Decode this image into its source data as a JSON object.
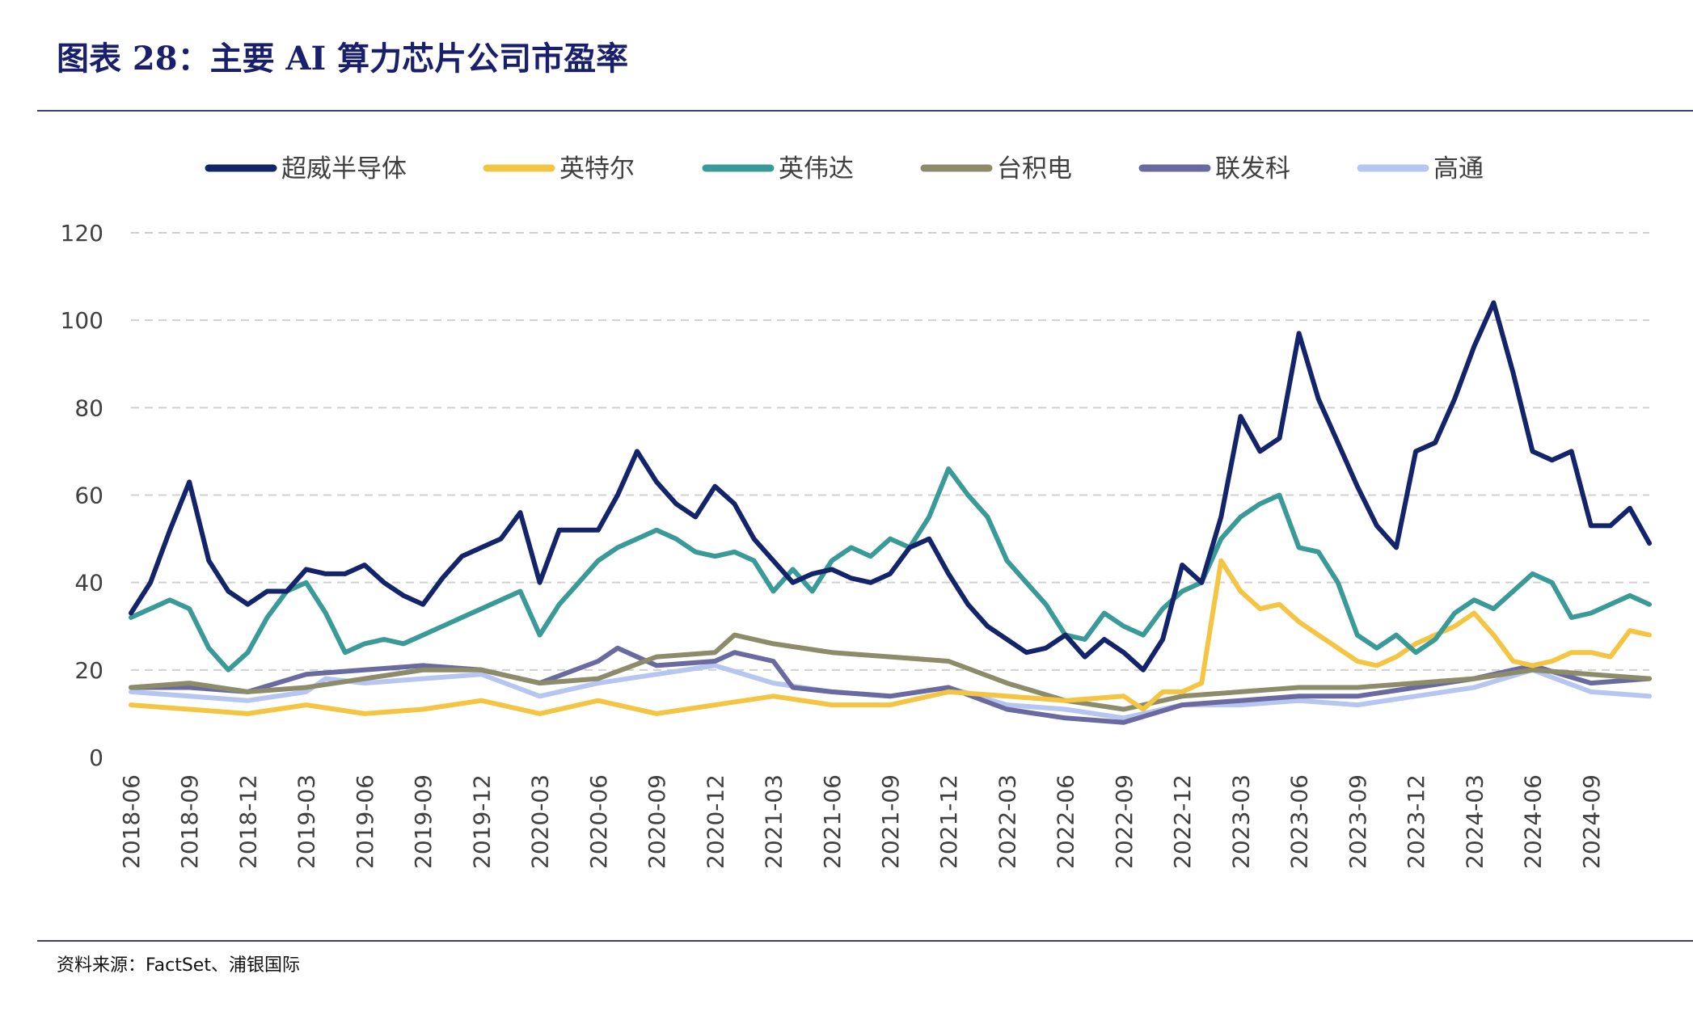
{
  "figure": {
    "title": "图表 28：主要 AI 算力芯片公司市盈率",
    "source": "资料来源：FactSet、浦银国际"
  },
  "chart_data": {
    "type": "line",
    "title": "图表 28：主要 AI 算力芯片公司市盈率",
    "xlabel": "",
    "ylabel": "",
    "ylim": [
      0,
      120
    ],
    "yticks": [
      0,
      20,
      40,
      60,
      80,
      100,
      120
    ],
    "xlim": [
      "2018-06",
      "2024-12"
    ],
    "xticks": [
      "2018-06",
      "2018-09",
      "2018-12",
      "2019-03",
      "2019-06",
      "2019-09",
      "2019-12",
      "2020-03",
      "2020-06",
      "2020-09",
      "2020-12",
      "2021-03",
      "2021-06",
      "2021-09",
      "2021-12",
      "2022-03",
      "2022-06",
      "2022-09",
      "2022-12",
      "2023-03",
      "2023-06",
      "2023-09",
      "2023-12",
      "2024-03",
      "2024-06",
      "2024-09"
    ],
    "grid": "horizontal dashed",
    "legend_position": "top",
    "series": [
      {
        "name": "超威半导体",
        "color": "#13246b",
        "x": [
          "2018-06",
          "2018-07",
          "2018-08",
          "2018-09",
          "2018-10",
          "2018-11",
          "2018-12",
          "2019-01",
          "2019-02",
          "2019-03",
          "2019-04",
          "2019-05",
          "2019-06",
          "2019-07",
          "2019-08",
          "2019-09",
          "2019-10",
          "2019-11",
          "2019-12",
          "2020-01",
          "2020-02",
          "2020-03",
          "2020-04",
          "2020-05",
          "2020-06",
          "2020-07",
          "2020-08",
          "2020-09",
          "2020-10",
          "2020-11",
          "2020-12",
          "2021-01",
          "2021-02",
          "2021-03",
          "2021-04",
          "2021-05",
          "2021-06",
          "2021-07",
          "2021-08",
          "2021-09",
          "2021-10",
          "2021-11",
          "2021-12",
          "2022-01",
          "2022-02",
          "2022-03",
          "2022-04",
          "2022-05",
          "2022-06",
          "2022-07",
          "2022-08",
          "2022-09",
          "2022-10",
          "2022-11",
          "2022-12",
          "2023-01",
          "2023-02",
          "2023-03",
          "2023-04",
          "2023-05",
          "2023-06",
          "2023-07",
          "2023-08",
          "2023-09",
          "2023-10",
          "2023-11",
          "2023-12",
          "2024-01",
          "2024-02",
          "2024-03",
          "2024-04",
          "2024-05",
          "2024-06",
          "2024-07",
          "2024-08",
          "2024-09",
          "2024-10",
          "2024-11",
          "2024-12"
        ],
        "values": [
          33,
          40,
          52,
          63,
          45,
          38,
          35,
          38,
          38,
          43,
          42,
          42,
          44,
          40,
          37,
          35,
          41,
          46,
          48,
          50,
          56,
          40,
          52,
          52,
          52,
          60,
          70,
          63,
          58,
          55,
          62,
          58,
          50,
          45,
          40,
          42,
          43,
          41,
          40,
          42,
          48,
          50,
          42,
          35,
          30,
          27,
          24,
          25,
          28,
          23,
          27,
          24,
          20,
          27,
          44,
          40,
          55,
          78,
          70,
          73,
          97,
          82,
          72,
          62,
          53,
          48,
          70,
          72,
          82,
          94,
          104,
          88,
          70,
          68,
          70,
          53,
          53,
          57,
          49
        ]
      },
      {
        "name": "英特尔",
        "color": "#f4c542",
        "x": [
          "2018-06",
          "2018-09",
          "2018-12",
          "2019-03",
          "2019-06",
          "2019-09",
          "2019-12",
          "2020-03",
          "2020-06",
          "2020-09",
          "2020-12",
          "2021-03",
          "2021-06",
          "2021-09",
          "2021-12",
          "2022-03",
          "2022-06",
          "2022-09",
          "2022-10",
          "2022-11",
          "2022-12",
          "2023-01",
          "2023-02",
          "2023-03",
          "2023-04",
          "2023-05",
          "2023-06",
          "2023-07",
          "2023-08",
          "2023-09",
          "2023-10",
          "2023-11",
          "2023-12",
          "2024-01",
          "2024-02",
          "2024-03",
          "2024-04",
          "2024-05",
          "2024-06",
          "2024-07",
          "2024-08",
          "2024-09",
          "2024-10",
          "2024-11",
          "2024-12"
        ],
        "values": [
          12,
          11,
          10,
          12,
          10,
          11,
          13,
          10,
          13,
          10,
          12,
          14,
          12,
          12,
          15,
          14,
          13,
          14,
          11,
          15,
          15,
          17,
          45,
          38,
          34,
          35,
          31,
          28,
          25,
          22,
          21,
          23,
          26,
          28,
          30,
          33,
          28,
          22,
          21,
          22,
          24,
          24,
          23,
          29,
          28
        ]
      },
      {
        "name": "英伟达",
        "color": "#3a9a98",
        "x": [
          "2018-06",
          "2018-07",
          "2018-08",
          "2018-09",
          "2018-10",
          "2018-11",
          "2018-12",
          "2019-01",
          "2019-02",
          "2019-03",
          "2019-04",
          "2019-05",
          "2019-06",
          "2019-07",
          "2019-08",
          "2019-09",
          "2019-10",
          "2019-11",
          "2019-12",
          "2020-01",
          "2020-02",
          "2020-03",
          "2020-04",
          "2020-05",
          "2020-06",
          "2020-07",
          "2020-08",
          "2020-09",
          "2020-10",
          "2020-11",
          "2020-12",
          "2021-01",
          "2021-02",
          "2021-03",
          "2021-04",
          "2021-05",
          "2021-06",
          "2021-07",
          "2021-08",
          "2021-09",
          "2021-10",
          "2021-11",
          "2021-12",
          "2022-01",
          "2022-02",
          "2022-03",
          "2022-04",
          "2022-05",
          "2022-06",
          "2022-07",
          "2022-08",
          "2022-09",
          "2022-10",
          "2022-11",
          "2022-12",
          "2023-01",
          "2023-02",
          "2023-03",
          "2023-04",
          "2023-05",
          "2023-06",
          "2023-07",
          "2023-08",
          "2023-09",
          "2023-10",
          "2023-11",
          "2023-12",
          "2024-01",
          "2024-02",
          "2024-03",
          "2024-04",
          "2024-05",
          "2024-06",
          "2024-07",
          "2024-08",
          "2024-09",
          "2024-10",
          "2024-11",
          "2024-12"
        ],
        "values": [
          32,
          34,
          36,
          34,
          25,
          20,
          24,
          32,
          38,
          40,
          33,
          24,
          26,
          27,
          26,
          28,
          30,
          32,
          34,
          36,
          38,
          28,
          35,
          40,
          45,
          48,
          50,
          52,
          50,
          47,
          46,
          47,
          45,
          38,
          43,
          38,
          45,
          48,
          46,
          50,
          48,
          55,
          66,
          60,
          55,
          45,
          40,
          35,
          28,
          27,
          33,
          30,
          28,
          34,
          38,
          40,
          50,
          55,
          58,
          60,
          48,
          47,
          40,
          28,
          25,
          28,
          24,
          27,
          33,
          36,
          34,
          38,
          42,
          40,
          32,
          33,
          35,
          37,
          35
        ]
      },
      {
        "name": "台积电",
        "color": "#8c8c6a",
        "x": [
          "2018-06",
          "2018-09",
          "2018-12",
          "2019-03",
          "2019-06",
          "2019-09",
          "2019-12",
          "2020-03",
          "2020-06",
          "2020-09",
          "2020-12",
          "2021-01",
          "2021-03",
          "2021-06",
          "2021-09",
          "2021-12",
          "2022-03",
          "2022-06",
          "2022-09",
          "2022-12",
          "2023-03",
          "2023-06",
          "2023-09",
          "2023-12",
          "2024-03",
          "2024-06",
          "2024-09",
          "2024-12"
        ],
        "values": [
          16,
          17,
          15,
          16,
          18,
          20,
          20,
          17,
          18,
          23,
          24,
          28,
          26,
          24,
          23,
          22,
          17,
          13,
          11,
          14,
          15,
          16,
          16,
          17,
          18,
          20,
          19,
          18
        ]
      },
      {
        "name": "联发科",
        "color": "#6a6aa0",
        "x": [
          "2018-06",
          "2018-09",
          "2018-12",
          "2019-03",
          "2019-06",
          "2019-09",
          "2019-12",
          "2020-03",
          "2020-06",
          "2020-07",
          "2020-09",
          "2020-12",
          "2021-01",
          "2021-03",
          "2021-04",
          "2021-06",
          "2021-09",
          "2021-12",
          "2022-03",
          "2022-06",
          "2022-09",
          "2022-12",
          "2023-03",
          "2023-06",
          "2023-09",
          "2023-12",
          "2024-03",
          "2024-06",
          "2024-09",
          "2024-12"
        ],
        "values": [
          16,
          16,
          15,
          19,
          20,
          21,
          20,
          17,
          22,
          25,
          21,
          22,
          24,
          22,
          16,
          15,
          14,
          16,
          11,
          9,
          8,
          12,
          13,
          14,
          14,
          16,
          18,
          21,
          17,
          18
        ]
      },
      {
        "name": "高通",
        "color": "#b6c6f0",
        "x": [
          "2018-06",
          "2018-09",
          "2018-12",
          "2019-03",
          "2019-04",
          "2019-06",
          "2019-09",
          "2019-12",
          "2020-03",
          "2020-06",
          "2020-09",
          "2020-12",
          "2021-03",
          "2021-06",
          "2021-09",
          "2021-12",
          "2022-03",
          "2022-06",
          "2022-09",
          "2022-12",
          "2023-03",
          "2023-06",
          "2023-09",
          "2023-12",
          "2024-03",
          "2024-06",
          "2024-09",
          "2024-12"
        ],
        "values": [
          15,
          14,
          13,
          15,
          18,
          17,
          18,
          19,
          14,
          17,
          19,
          21,
          17,
          15,
          14,
          16,
          12,
          11,
          9,
          12,
          12,
          13,
          12,
          14,
          16,
          20,
          15,
          14
        ]
      }
    ]
  }
}
